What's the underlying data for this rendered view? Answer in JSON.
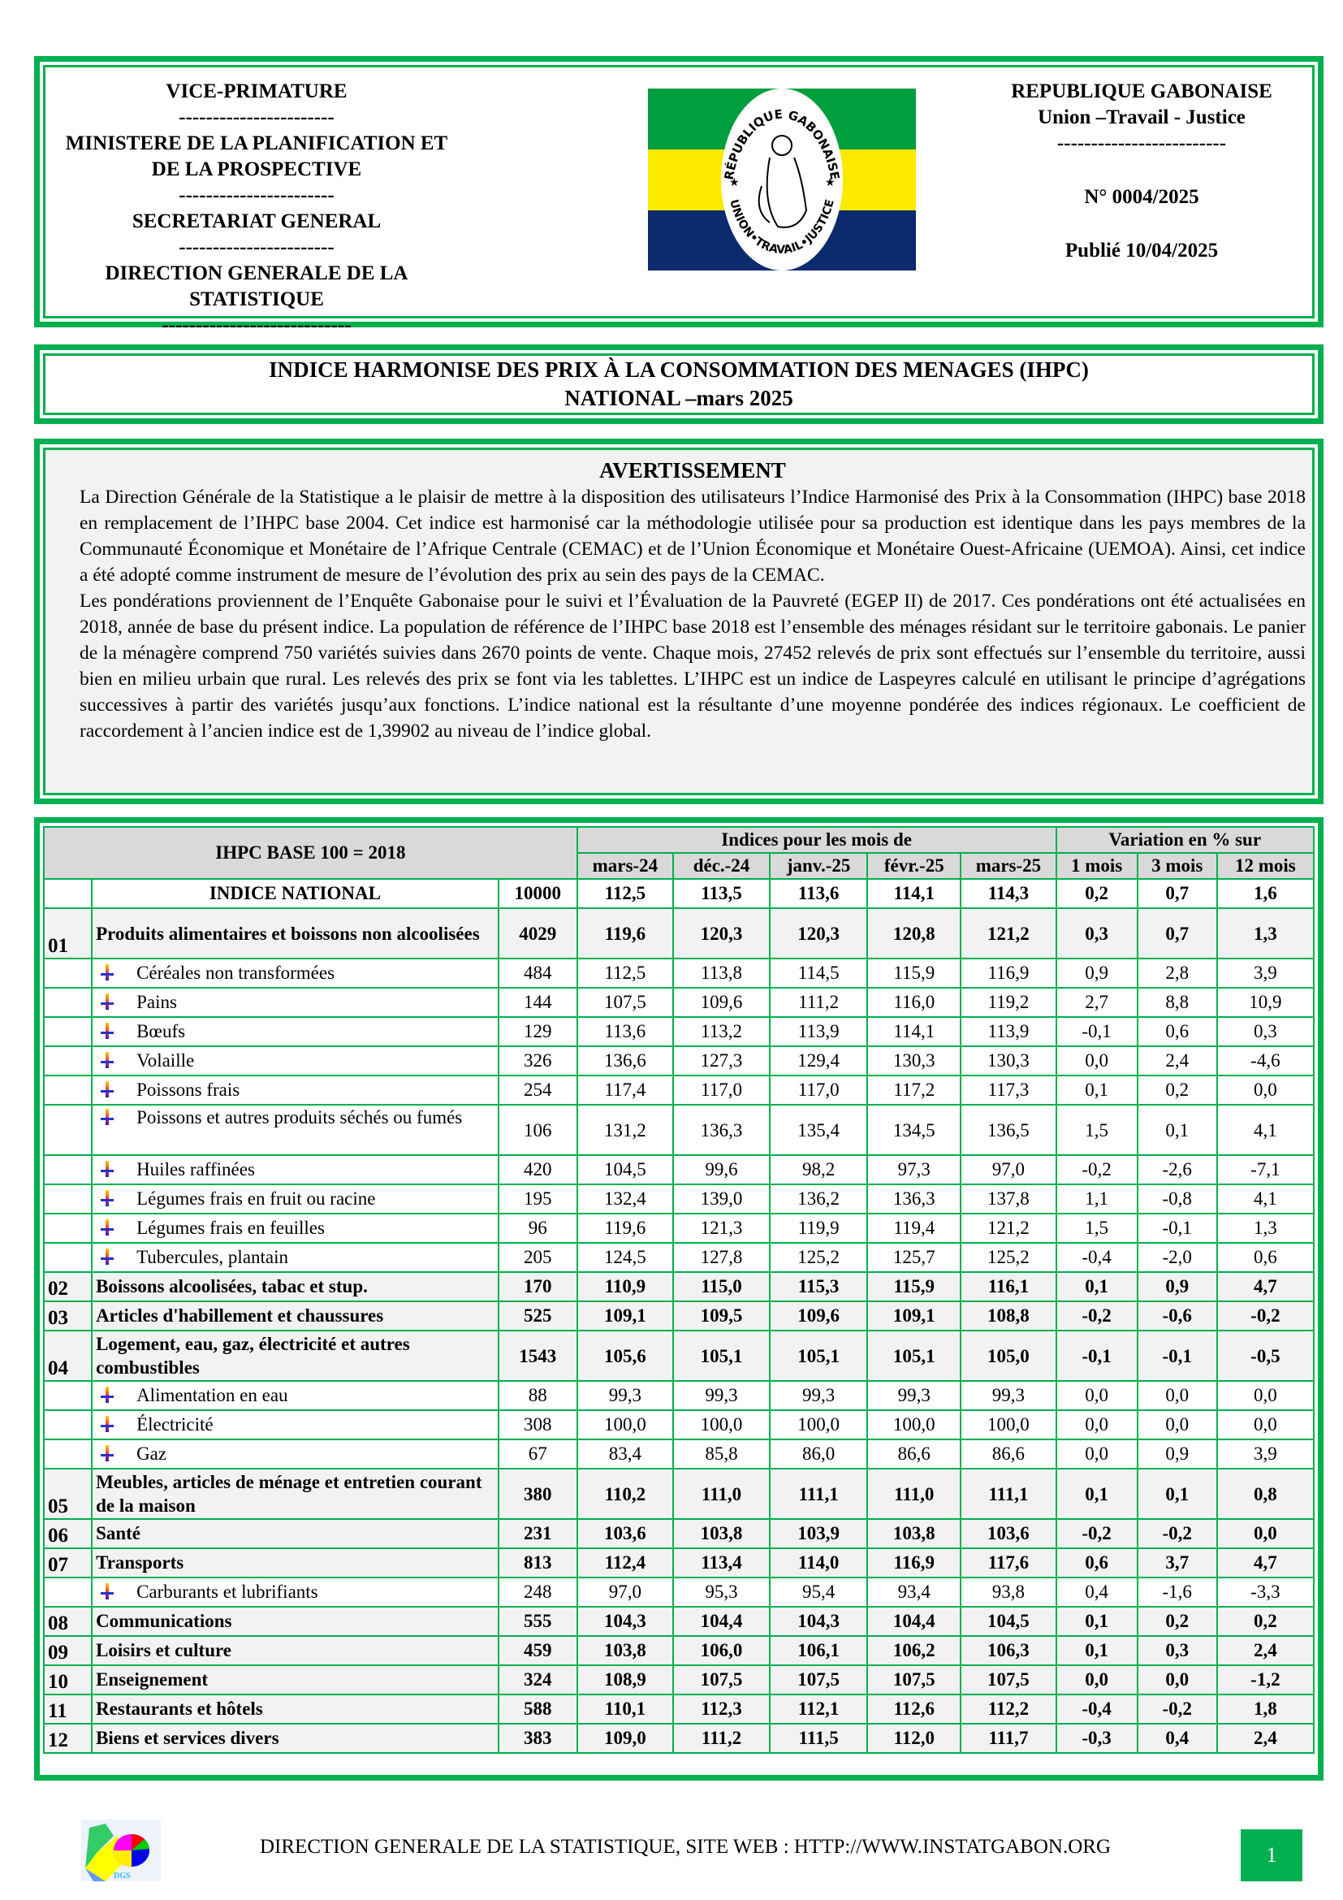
{
  "header": {
    "left": [
      "VICE-PRIMATURE",
      "-----------------------",
      "MINISTERE DE LA PLANIFICATION ET DE LA PROSPECTIVE",
      "-----------------------",
      "SECRETARIAT GENERAL",
      "-----------------------",
      "DIRECTION GENERALE DE LA STATISTIQUE",
      "----------------------------"
    ],
    "right": {
      "country": "REPUBLIQUE GABONAISE",
      "motto": "Union –Travail - Justice",
      "sep": "-------------------------",
      "number": "N° 0004/2025",
      "published": "Publié 10/04/2025"
    },
    "emblem_text": {
      "top": "RÉPUBLIQUE GABONAISE",
      "bottom": "UNION•TRAVAIL•JUSTICE"
    },
    "flag_colors": {
      "green": "#009e3d",
      "yellow": "#fcea00",
      "blue": "#0c2a6e"
    }
  },
  "title": {
    "line1": "INDICE HARMONISE DES PRIX À LA CONSOMMATION DES MENAGES (IHPC)",
    "line2": "NATIONAL –mars 2025"
  },
  "notice": {
    "heading": "AVERTISSEMENT",
    "p1": "La Direction Générale de la Statistique a le plaisir de mettre à la disposition des utilisateurs l’Indice Harmonisé des Prix à la Consommation (IHPC) base 2018 en remplacement de l’IHPC base 2004. Cet indice est harmonisé car la méthodologie utilisée pour sa production est identique dans les pays membres de la Communauté Économique et Monétaire de l’Afrique Centrale (CEMAC) et de l’Union Économique et Monétaire Ouest-Africaine (UEMOA). Ainsi, cet indice a été adopté comme instrument de mesure de l’évolution des prix au sein des pays de la CEMAC.",
    "p2": "Les pondérations proviennent de l’Enquête Gabonaise pour le suivi et l’Évaluation de la Pauvreté (EGEP II) de 2017. Ces pondérations ont été actualisées en 2018, année de base du présent indice. La population de référence de l’IHPC base 2018 est l’ensemble des ménages résidant sur le territoire gabonais. Le panier de la ménagère comprend 750 variétés suivies dans 2670 points de vente. Chaque mois, 27452 relevés de prix sont effectués sur l’ensemble du territoire, aussi bien en milieu urbain que rural. Les relevés des prix se font via les tablettes. L’IHPC est un indice de Laspeyres calculé en utilisant le principe d’agrégations successives à partir des variétés jusqu’aux fonctions. L’indice national est la résultante d’une moyenne pondérée des indices régionaux. Le coefficient de raccordement à l’ancien indice est de 1,39902 au niveau de l’indice global."
  },
  "table": {
    "base_label": "IHPC BASE 100 = 2018",
    "indices_header": "Indices pour les mois de",
    "variation_header": "Variation en % sur",
    "months": [
      "mars-24",
      "déc.-24",
      "janv.-25",
      "févr.-25",
      "mars-25"
    ],
    "periods": [
      "1 mois",
      "3 mois",
      "12 mois"
    ],
    "rows": [
      {
        "type": "total",
        "code": "",
        "label": "INDICE NATIONAL",
        "weight": "10000",
        "values": [
          "112,5",
          "113,5",
          "113,6",
          "114,1",
          "114,3",
          "0,2",
          "0,7",
          "1,6"
        ]
      },
      {
        "type": "group",
        "code": "01",
        "label": "Produits alimentaires et boissons non alcoolisées",
        "weight": "4029",
        "values": [
          "119,6",
          "120,3",
          "120,3",
          "120,8",
          "121,2",
          "0,3",
          "0,7",
          "1,3"
        ]
      },
      {
        "type": "sub",
        "code": "",
        "label": "Céréales non transformées",
        "weight": "484",
        "values": [
          "112,5",
          "113,8",
          "114,5",
          "115,9",
          "116,9",
          "0,9",
          "2,8",
          "3,9"
        ]
      },
      {
        "type": "sub",
        "code": "",
        "label": "Pains",
        "weight": "144",
        "values": [
          "107,5",
          "109,6",
          "111,2",
          "116,0",
          "119,2",
          "2,7",
          "8,8",
          "10,9"
        ]
      },
      {
        "type": "sub",
        "code": "",
        "label": "Bœufs",
        "weight": "129",
        "values": [
          "113,6",
          "113,2",
          "113,9",
          "114,1",
          "113,9",
          "-0,1",
          "0,6",
          "0,3"
        ]
      },
      {
        "type": "sub",
        "code": "",
        "label": "Volaille",
        "weight": "326",
        "values": [
          "136,6",
          "127,3",
          "129,4",
          "130,3",
          "130,3",
          "0,0",
          "2,4",
          "-4,6"
        ]
      },
      {
        "type": "sub",
        "code": "",
        "label": "Poissons frais",
        "weight": "254",
        "values": [
          "117,4",
          "117,0",
          "117,0",
          "117,2",
          "117,3",
          "0,1",
          "0,2",
          "0,0"
        ]
      },
      {
        "type": "sub",
        "code": "",
        "label": "Poissons et autres produits séchés ou fumés",
        "weight": "106",
        "values": [
          "131,2",
          "136,3",
          "135,4",
          "134,5",
          "136,5",
          "1,5",
          "0,1",
          "4,1"
        ]
      },
      {
        "type": "sub",
        "code": "",
        "label": "Huiles raffinées",
        "weight": "420",
        "values": [
          "104,5",
          "99,6",
          "98,2",
          "97,3",
          "97,0",
          "-0,2",
          "-2,6",
          "-7,1"
        ]
      },
      {
        "type": "sub",
        "code": "",
        "label": "Légumes frais en fruit ou racine",
        "weight": "195",
        "values": [
          "132,4",
          "139,0",
          "136,2",
          "136,3",
          "137,8",
          "1,1",
          "-0,8",
          "4,1"
        ]
      },
      {
        "type": "sub",
        "code": "",
        "label": "Légumes frais en feuilles",
        "weight": "96",
        "values": [
          "119,6",
          "121,3",
          "119,9",
          "119,4",
          "121,2",
          "1,5",
          "-0,1",
          "1,3"
        ]
      },
      {
        "type": "sub",
        "code": "",
        "label": "Tubercules, plantain",
        "weight": "205",
        "values": [
          "124,5",
          "127,8",
          "125,2",
          "125,7",
          "125,2",
          "-0,4",
          "-2,0",
          "0,6"
        ]
      },
      {
        "type": "group",
        "code": "02",
        "label": "Boissons alcoolisées, tabac et stup.",
        "weight": "170",
        "values": [
          "110,9",
          "115,0",
          "115,3",
          "115,9",
          "116,1",
          "0,1",
          "0,9",
          "4,7"
        ]
      },
      {
        "type": "group",
        "code": "03",
        "label": "Articles d'habillement et chaussures",
        "weight": "525",
        "values": [
          "109,1",
          "109,5",
          "109,6",
          "109,1",
          "108,8",
          "-0,2",
          "-0,6",
          "-0,2"
        ]
      },
      {
        "type": "group",
        "code": "04",
        "label": "Logement, eau, gaz, électricité et autres combustibles",
        "weight": "1543",
        "values": [
          "105,6",
          "105,1",
          "105,1",
          "105,1",
          "105,0",
          "-0,1",
          "-0,1",
          "-0,5"
        ]
      },
      {
        "type": "sub",
        "code": "",
        "label": "Alimentation en eau",
        "weight": "88",
        "values": [
          "99,3",
          "99,3",
          "99,3",
          "99,3",
          "99,3",
          "0,0",
          "0,0",
          "0,0"
        ]
      },
      {
        "type": "sub",
        "code": "",
        "label": "Électricité",
        "weight": "308",
        "values": [
          "100,0",
          "100,0",
          "100,0",
          "100,0",
          "100,0",
          "0,0",
          "0,0",
          "0,0"
        ]
      },
      {
        "type": "sub",
        "code": "",
        "label": "Gaz",
        "weight": "67",
        "values": [
          "83,4",
          "85,8",
          "86,0",
          "86,6",
          "86,6",
          "0,0",
          "0,9",
          "3,9"
        ]
      },
      {
        "type": "group",
        "code": "05",
        "label": "Meubles, articles de ménage et entretien courant de la maison",
        "weight": "380",
        "values": [
          "110,2",
          "111,0",
          "111,1",
          "111,0",
          "111,1",
          "0,1",
          "0,1",
          "0,8"
        ]
      },
      {
        "type": "group",
        "code": "06",
        "label": "Santé",
        "weight": "231",
        "values": [
          "103,6",
          "103,8",
          "103,9",
          "103,8",
          "103,6",
          "-0,2",
          "-0,2",
          "0,0"
        ]
      },
      {
        "type": "group",
        "code": "07",
        "label": "Transports",
        "weight": "813",
        "values": [
          "112,4",
          "113,4",
          "114,0",
          "116,9",
          "117,6",
          "0,6",
          "3,7",
          "4,7"
        ]
      },
      {
        "type": "sub",
        "code": "",
        "label": "Carburants et lubrifiants",
        "weight": "248",
        "values": [
          "97,0",
          "95,3",
          "95,4",
          "93,4",
          "93,8",
          "0,4",
          "-1,6",
          "-3,3"
        ]
      },
      {
        "type": "group",
        "code": "08",
        "label": "Communications",
        "weight": "555",
        "values": [
          "104,3",
          "104,4",
          "104,3",
          "104,4",
          "104,5",
          "0,1",
          "0,2",
          "0,2"
        ]
      },
      {
        "type": "group",
        "code": "09",
        "label": "Loisirs et culture",
        "weight": "459",
        "values": [
          "103,8",
          "106,0",
          "106,1",
          "106,2",
          "106,3",
          "0,1",
          "0,3",
          "2,4"
        ]
      },
      {
        "type": "group",
        "code": "10",
        "label": "Enseignement",
        "weight": "324",
        "values": [
          "108,9",
          "107,5",
          "107,5",
          "107,5",
          "107,5",
          "0,0",
          "0,0",
          "-1,2"
        ]
      },
      {
        "type": "group",
        "code": "11",
        "label": "Restaurants et hôtels",
        "weight": "588",
        "values": [
          "110,1",
          "112,3",
          "112,1",
          "112,6",
          "112,2",
          "-0,4",
          "-0,2",
          "1,8"
        ]
      },
      {
        "type": "group",
        "code": "12",
        "label": "Biens et services divers",
        "weight": "383",
        "values": [
          "109,0",
          "111,2",
          "111,5",
          "112,0",
          "111,7",
          "-0,3",
          "0,4",
          "2,4"
        ]
      }
    ]
  },
  "footer": {
    "text": "DIRECTION GENERALE DE LA STATISTIQUE, SITE WEB : HTTP://WWW.INSTATGABON.ORG",
    "page": "1",
    "logo_text": "DGS"
  }
}
